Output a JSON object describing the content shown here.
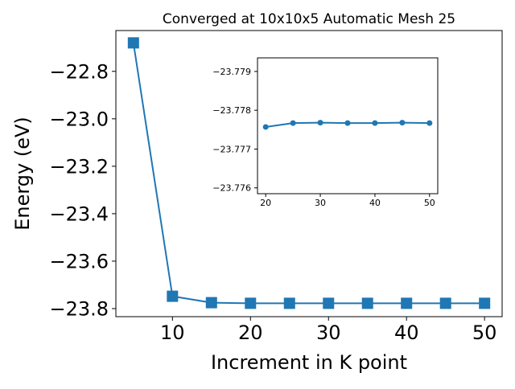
{
  "chart_data": [
    {
      "type": "line",
      "title": "Converged at 10x10x5 Automatic Mesh 25",
      "xlabel": "Increment in K point",
      "ylabel": "Energy (eV)",
      "x": [
        5,
        10,
        15,
        20,
        25,
        30,
        35,
        40,
        45,
        50
      ],
      "series": [
        {
          "values": [
            -22.68,
            -23.748,
            -23.775,
            -23.7776,
            -23.7777,
            -23.7777,
            -23.7777,
            -23.7777,
            -23.7777,
            -23.7777
          ],
          "color": "#1f77b4",
          "marker": "square"
        }
      ],
      "xlim": [
        2.75,
        52.25
      ],
      "ylim": [
        -23.834,
        -22.628
      ],
      "xticks": [
        10,
        20,
        30,
        40,
        50
      ],
      "yticks": [
        -23.8,
        -23.6,
        -23.4,
        -23.2,
        -23.0,
        -22.8
      ],
      "xtick_labels": [
        "10",
        "20",
        "30",
        "40",
        "50"
      ],
      "ytick_labels": [
        "−23.8",
        "−23.6",
        "−23.4",
        "−23.2",
        "−23.0",
        "−22.8"
      ],
      "grid": false,
      "legend": "none"
    },
    {
      "type": "line",
      "title": "",
      "xlabel": "",
      "ylabel": "",
      "x": [
        20,
        25,
        30,
        35,
        40,
        45,
        50
      ],
      "series": [
        {
          "values": [
            -23.77757,
            -23.77767,
            -23.77768,
            -23.77767,
            -23.77767,
            -23.77768,
            -23.77767
          ],
          "color": "#1f77b4",
          "marker": "circle"
        }
      ],
      "xlim": [
        18.5,
        51.5
      ],
      "ylim": [
        -23.77585,
        -23.77935
      ],
      "xticks": [
        20,
        30,
        40,
        50
      ],
      "yticks": [
        -23.779,
        -23.778,
        -23.777,
        -23.776
      ],
      "xtick_labels": [
        "20",
        "30",
        "40",
        "50"
      ],
      "ytick_labels": [
        "−23.779",
        "−23.778",
        "−23.777",
        "−23.776"
      ],
      "grid": false,
      "legend": "none"
    }
  ]
}
